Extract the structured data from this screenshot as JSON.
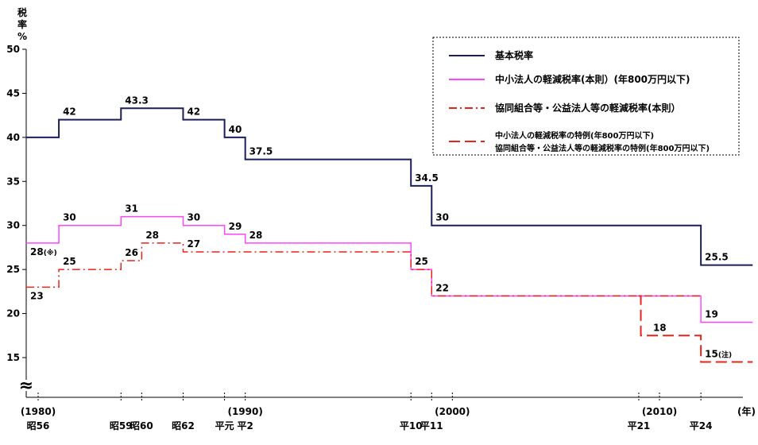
{
  "chart_data": {
    "type": "line",
    "ylabel": [
      "税",
      "率",
      "%"
    ],
    "ylim": [
      10,
      50
    ],
    "xlim": [
      1980,
      2014.5
    ],
    "y_ticks": [
      15,
      20,
      25,
      30,
      35,
      40,
      45,
      50
    ],
    "axis_break": "≈",
    "x_tick_labels": [
      {
        "x": 1980,
        "top": "(1980)",
        "bottom": "昭56"
      },
      {
        "x": 1984,
        "top": "",
        "bottom": "昭59"
      },
      {
        "x": 1985,
        "top": "",
        "bottom": "昭60"
      },
      {
        "x": 1987,
        "top": "",
        "bottom": "昭62"
      },
      {
        "x": 1989,
        "top": "",
        "bottom": "平元"
      },
      {
        "x": 1990,
        "top": "(1990)",
        "bottom": "平2"
      },
      {
        "x": 1998,
        "top": "",
        "bottom": "平10"
      },
      {
        "x": 1999,
        "top": "",
        "bottom": "平11"
      },
      {
        "x": 2000,
        "top": "(2000)",
        "bottom": ""
      },
      {
        "x": 2009,
        "top": "",
        "bottom": "平21"
      },
      {
        "x": 2010,
        "top": "(2010)",
        "bottom": ""
      },
      {
        "x": 2012,
        "top": "",
        "bottom": "平24"
      },
      {
        "x": 2014.2,
        "top": "(年)",
        "bottom": ""
      }
    ],
    "series": [
      {
        "name": "基本税率",
        "color": "#1a1f5c",
        "style": "solid",
        "start": 1978.8,
        "end": 2014.5,
        "steps": [
          [
            1978.8,
            40
          ],
          [
            1981,
            42
          ],
          [
            1984,
            43.3
          ],
          [
            1987,
            42
          ],
          [
            1989,
            40
          ],
          [
            1990,
            37.5
          ],
          [
            1998,
            34.5
          ],
          [
            1999,
            30
          ],
          [
            2012,
            25.5
          ]
        ]
      },
      {
        "name": "中小法人の軽減税率(本則）(年800万円以下)",
        "color": "#ff44ff",
        "style": "solid",
        "start": 1978.8,
        "end": 2014.5,
        "steps": [
          [
            1978.8,
            28
          ],
          [
            1981,
            30
          ],
          [
            1984,
            31
          ],
          [
            1987,
            30
          ],
          [
            1989,
            29
          ],
          [
            1990,
            28
          ],
          [
            1998,
            25
          ],
          [
            1999,
            22
          ],
          [
            2012,
            19
          ]
        ]
      },
      {
        "name": "協同組合等・公益法人等の軽減税率(本則）",
        "color": "#e8231a",
        "style": "dashdot",
        "start": 1978.8,
        "end": 2012,
        "steps": [
          [
            1978.8,
            23
          ],
          [
            1981,
            25
          ],
          [
            1984,
            26
          ],
          [
            1985,
            28
          ],
          [
            1987,
            27
          ],
          [
            1998,
            25
          ],
          [
            1999,
            22
          ]
        ]
      },
      {
        "name": "中小法人の軽減税率の特例(年800万円以下)\n協同組合等・公益法人等の軽減税率の特例(年800万円以下)",
        "color": "#e8231a",
        "style": "dashed",
        "start": 2009,
        "end": 2014.5,
        "steps": [
          [
            2009,
            22
          ],
          [
            2009.1,
            17.5
          ],
          [
            2012,
            14.5
          ]
        ]
      }
    ],
    "data_labels": [
      {
        "text": "42",
        "x": 1981,
        "y": 42
      },
      {
        "text": "43.3",
        "x": 1984,
        "y": 43.3
      },
      {
        "text": "42",
        "x": 1987,
        "y": 42
      },
      {
        "text": "40",
        "x": 1989,
        "y": 40
      },
      {
        "text": "37.5",
        "x": 1990,
        "y": 37.5
      },
      {
        "text": "34.5",
        "x": 1998,
        "y": 34.5
      },
      {
        "text": "30",
        "x": 1999,
        "y": 30
      },
      {
        "text": "25.5",
        "x": 2012,
        "y": 25.5
      },
      {
        "text": "30",
        "x": 1981,
        "y": 30
      },
      {
        "text": "31",
        "x": 1984,
        "y": 31
      },
      {
        "text": "30",
        "x": 1987,
        "y": 30
      },
      {
        "text": "29",
        "x": 1989,
        "y": 29
      },
      {
        "text": "28",
        "x": 1990,
        "y": 28
      },
      {
        "text": "28",
        "x": 1978.8,
        "y": 28,
        "note": "(※)",
        "below": true
      },
      {
        "text": "25",
        "x": 1981,
        "y": 25
      },
      {
        "text": "23",
        "x": 1978.8,
        "y": 23,
        "below": true
      },
      {
        "text": "26",
        "x": 1984,
        "y": 26
      },
      {
        "text": "28",
        "x": 1985,
        "y": 28
      },
      {
        "text": "27",
        "x": 1987,
        "y": 27
      },
      {
        "text": "25",
        "x": 1998,
        "y": 25
      },
      {
        "text": "22",
        "x": 1999,
        "y": 22
      },
      {
        "text": "18",
        "x": 2009.5,
        "y": 17.5
      },
      {
        "text": "19",
        "x": 2012,
        "y": 19
      },
      {
        "text": "15",
        "x": 2012,
        "y": 14.5,
        "note": "(注)"
      }
    ],
    "legend": {
      "placement": "top-right",
      "entries": [
        {
          "label": "基本税率",
          "color": "#1a1f5c",
          "style": "solid"
        },
        {
          "label": "中小法人の軽減税率(本則）(年800万円以下)",
          "color": "#ff44ff",
          "style": "solid"
        },
        {
          "label": "協同組合等・公益法人等の軽減税率(本則）",
          "color": "#e8231a",
          "style": "dashdot"
        },
        {
          "label": "中小法人の軽減税率の特例(年800万円以下)",
          "label2": "協同組合等・公益法人等の軽減税率の特例(年800万円以下)",
          "color": "#e8231a",
          "style": "dashed"
        }
      ]
    }
  }
}
